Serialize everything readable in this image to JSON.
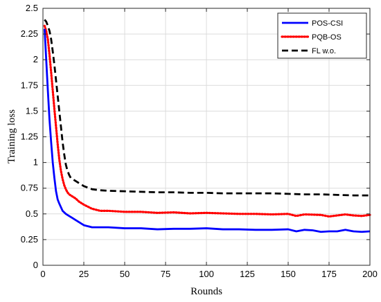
{
  "chart_data": {
    "type": "line",
    "title": "",
    "xlabel": "Rounds",
    "ylabel": "Training loss",
    "xlim": [
      0,
      200
    ],
    "ylim": [
      0,
      2.5
    ],
    "xticks": [
      0,
      25,
      50,
      75,
      100,
      125,
      150,
      175,
      200
    ],
    "yticks": [
      0,
      0.25,
      0.5,
      0.75,
      1,
      1.25,
      1.5,
      1.75,
      2,
      2.25,
      2.5
    ],
    "grid": true,
    "legend_position": "top-right",
    "series": [
      {
        "name": "POS-CSI",
        "color": "#0000ff",
        "style": "solid",
        "x": [
          1,
          2,
          3,
          4,
          5,
          6,
          7,
          8,
          9,
          10,
          12,
          14,
          16,
          18,
          20,
          25,
          30,
          35,
          40,
          50,
          60,
          70,
          80,
          90,
          100,
          110,
          120,
          130,
          140,
          150,
          155,
          160,
          165,
          170,
          175,
          180,
          185,
          190,
          195,
          200
        ],
        "y": [
          2.3,
          2.0,
          1.7,
          1.42,
          1.2,
          1.0,
          0.85,
          0.72,
          0.64,
          0.6,
          0.53,
          0.5,
          0.48,
          0.46,
          0.44,
          0.39,
          0.37,
          0.37,
          0.37,
          0.36,
          0.36,
          0.35,
          0.355,
          0.355,
          0.36,
          0.35,
          0.35,
          0.345,
          0.345,
          0.35,
          0.33,
          0.345,
          0.34,
          0.325,
          0.33,
          0.33,
          0.345,
          0.33,
          0.325,
          0.33
        ]
      },
      {
        "name": "PQB-OS",
        "color": "#ff0000",
        "style": "dotted",
        "x": [
          1,
          2,
          3,
          4,
          5,
          6,
          7,
          8,
          9,
          10,
          11,
          12,
          13,
          14,
          15,
          16,
          18,
          20,
          22,
          25,
          30,
          35,
          40,
          50,
          60,
          70,
          80,
          90,
          100,
          110,
          120,
          130,
          140,
          150,
          155,
          160,
          170,
          175,
          180,
          185,
          190,
          195,
          200
        ],
        "y": [
          2.33,
          2.28,
          2.2,
          2.05,
          1.88,
          1.7,
          1.52,
          1.35,
          1.18,
          1.03,
          0.92,
          0.84,
          0.78,
          0.74,
          0.71,
          0.69,
          0.67,
          0.65,
          0.62,
          0.59,
          0.55,
          0.53,
          0.53,
          0.52,
          0.52,
          0.51,
          0.515,
          0.505,
          0.51,
          0.505,
          0.5,
          0.5,
          0.495,
          0.5,
          0.48,
          0.495,
          0.49,
          0.475,
          0.485,
          0.495,
          0.485,
          0.48,
          0.49
        ]
      },
      {
        "name": "FL w.o.",
        "color": "#000000",
        "style": "dashed",
        "x": [
          1,
          2,
          3,
          4,
          5,
          6,
          7,
          8,
          9,
          10,
          11,
          12,
          13,
          14,
          15,
          16,
          17,
          18,
          20,
          22,
          25,
          30,
          35,
          40,
          50,
          60,
          70,
          80,
          90,
          100,
          110,
          120,
          130,
          140,
          150,
          160,
          170,
          180,
          190,
          200
        ],
        "y": [
          2.39,
          2.37,
          2.33,
          2.28,
          2.2,
          2.08,
          1.95,
          1.8,
          1.65,
          1.5,
          1.35,
          1.2,
          1.08,
          0.98,
          0.92,
          0.88,
          0.85,
          0.84,
          0.82,
          0.8,
          0.77,
          0.74,
          0.73,
          0.725,
          0.72,
          0.715,
          0.71,
          0.71,
          0.705,
          0.705,
          0.7,
          0.7,
          0.7,
          0.7,
          0.695,
          0.69,
          0.69,
          0.685,
          0.68,
          0.68
        ]
      }
    ]
  }
}
